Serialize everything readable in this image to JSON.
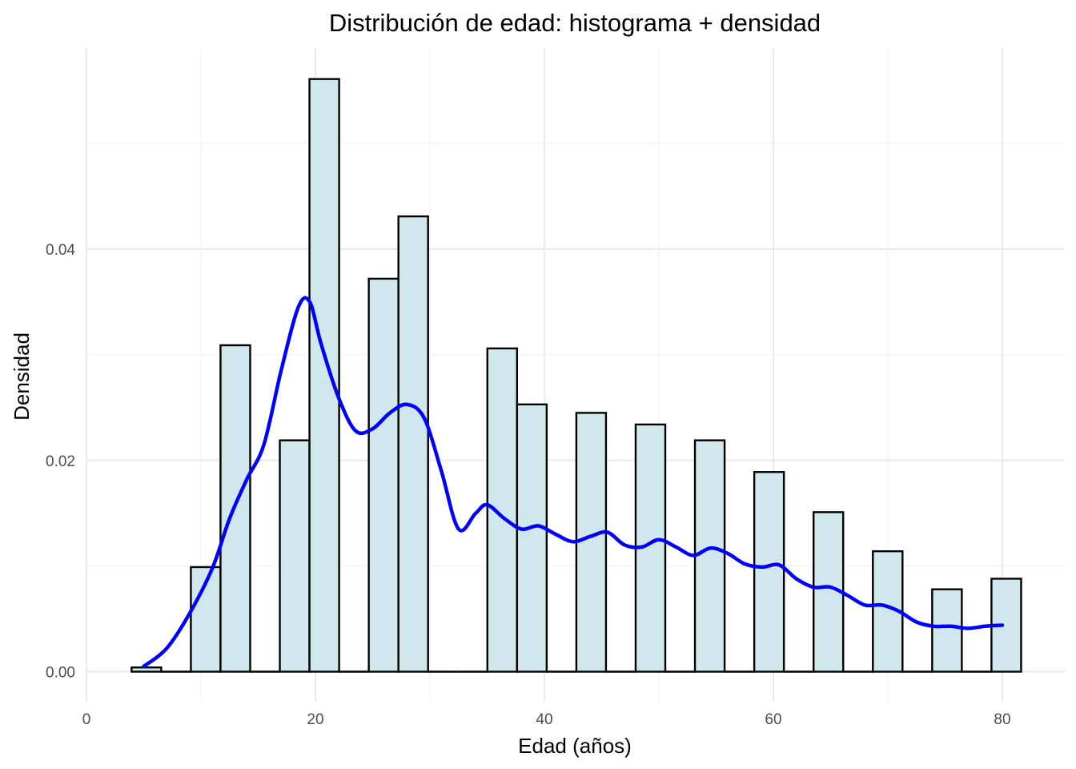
{
  "chart_data": {
    "type": "histogram",
    "title": "Distribución de edad: histograma + densidad",
    "xlabel": "Edad (años)",
    "ylabel": "Densidad",
    "xlim": [
      0,
      82
    ],
    "ylim": [
      0,
      0.056
    ],
    "x_ticks": [
      0,
      20,
      40,
      60,
      80
    ],
    "x_tick_labels": [
      "0",
      "20",
      "40",
      "60",
      "80"
    ],
    "y_ticks": [
      0.0,
      0.02,
      0.04
    ],
    "y_tick_labels": [
      "0.00",
      "0.02",
      "0.04"
    ],
    "grid": true,
    "colors": {
      "bar_fill": "#d0e7ee",
      "bar_stroke": "#000000",
      "density_line": "#0000ff"
    },
    "bins": [
      {
        "x0": 3.94,
        "x1": 6.53,
        "value": 0.0004
      },
      {
        "x0": 6.53,
        "x1": 9.12,
        "value": 0.0
      },
      {
        "x0": 9.12,
        "x1": 11.71,
        "value": 0.0099
      },
      {
        "x0": 11.71,
        "x1": 14.3,
        "value": 0.0309
      },
      {
        "x0": 14.3,
        "x1": 16.89,
        "value": 0.0
      },
      {
        "x0": 16.89,
        "x1": 19.48,
        "value": 0.0219
      },
      {
        "x0": 19.48,
        "x1": 22.07,
        "value": 0.0561
      },
      {
        "x0": 22.07,
        "x1": 24.66,
        "value": 0.0
      },
      {
        "x0": 24.66,
        "x1": 27.25,
        "value": 0.0372
      },
      {
        "x0": 27.25,
        "x1": 29.84,
        "value": 0.0431
      },
      {
        "x0": 29.84,
        "x1": 32.43,
        "value": 0.0
      },
      {
        "x0": 32.43,
        "x1": 35.02,
        "value": 0.0
      },
      {
        "x0": 35.02,
        "x1": 37.61,
        "value": 0.0306
      },
      {
        "x0": 37.61,
        "x1": 40.2,
        "value": 0.0253
      },
      {
        "x0": 40.2,
        "x1": 42.79,
        "value": 0.0
      },
      {
        "x0": 42.79,
        "x1": 45.38,
        "value": 0.0245
      },
      {
        "x0": 45.38,
        "x1": 47.97,
        "value": 0.0
      },
      {
        "x0": 47.97,
        "x1": 50.56,
        "value": 0.0234
      },
      {
        "x0": 50.56,
        "x1": 53.15,
        "value": 0.0
      },
      {
        "x0": 53.15,
        "x1": 55.74,
        "value": 0.0219
      },
      {
        "x0": 55.74,
        "x1": 58.33,
        "value": 0.0
      },
      {
        "x0": 58.33,
        "x1": 60.92,
        "value": 0.0189
      },
      {
        "x0": 60.92,
        "x1": 63.51,
        "value": 0.0
      },
      {
        "x0": 63.51,
        "x1": 66.1,
        "value": 0.0151
      },
      {
        "x0": 66.1,
        "x1": 68.69,
        "value": 0.0
      },
      {
        "x0": 68.69,
        "x1": 71.28,
        "value": 0.0114
      },
      {
        "x0": 71.28,
        "x1": 73.87,
        "value": 0.0
      },
      {
        "x0": 73.87,
        "x1": 76.46,
        "value": 0.0078
      },
      {
        "x0": 76.46,
        "x1": 79.05,
        "value": 0.0
      },
      {
        "x0": 79.05,
        "x1": 81.64,
        "value": 0.0088
      }
    ],
    "density": {
      "x": [
        5,
        7,
        9,
        11,
        12.5,
        14,
        15.5,
        17,
        18.5,
        19.5,
        20.5,
        22,
        23.5,
        25,
        26.5,
        28,
        29.5,
        31,
        32.5,
        34,
        35,
        36.5,
        38,
        39.5,
        41,
        42.5,
        44,
        45.5,
        47,
        48.5,
        50,
        51.5,
        53,
        54.5,
        56,
        57.5,
        59,
        60.5,
        62,
        63.5,
        65,
        66.5,
        68,
        69.5,
        71,
        72.5,
        74,
        75.5,
        77,
        78.5,
        80
      ],
      "y": [
        0.0005,
        0.0022,
        0.0055,
        0.0098,
        0.0145,
        0.0182,
        0.0215,
        0.0285,
        0.0345,
        0.035,
        0.031,
        0.026,
        0.0228,
        0.023,
        0.0245,
        0.0253,
        0.024,
        0.019,
        0.0135,
        0.015,
        0.0158,
        0.0145,
        0.0135,
        0.0138,
        0.013,
        0.0123,
        0.0128,
        0.0132,
        0.012,
        0.0118,
        0.0125,
        0.0118,
        0.011,
        0.0117,
        0.0112,
        0.0102,
        0.0099,
        0.0101,
        0.0088,
        0.008,
        0.008,
        0.0072,
        0.0063,
        0.0063,
        0.0057,
        0.0047,
        0.0043,
        0.0043,
        0.0041,
        0.0043,
        0.0044
      ]
    }
  }
}
